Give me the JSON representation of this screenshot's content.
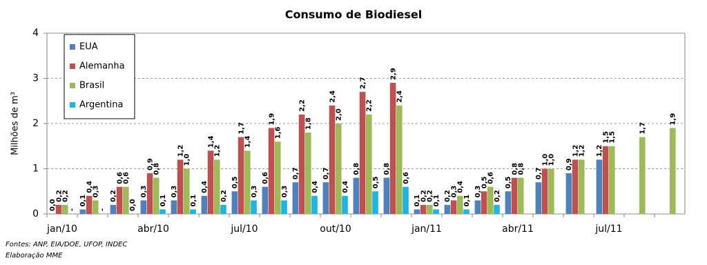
{
  "chart_data": {
    "type": "bar",
    "title": "Consumo de Biodiesel",
    "y_label": "Milhões de m³",
    "categories": [
      "jan/10",
      null,
      null,
      "abr/10",
      null,
      null,
      "jul/10",
      null,
      null,
      "out/10",
      null,
      null,
      "jan/11",
      null,
      null,
      "abr/11",
      null,
      null,
      "jul/11",
      null,
      null
    ],
    "series": [
      {
        "name": "EUA",
        "color": "#4f81bd",
        "values": [
          0.0,
          0.1,
          0.2,
          0.3,
          0.3,
          0.4,
          0.5,
          0.6,
          0.7,
          0.7,
          0.8,
          0.8,
          0.1,
          0.2,
          0.3,
          0.5,
          0.7,
          0.9,
          1.2,
          null,
          null
        ],
        "value_labels": [
          "0,0",
          "0,1",
          "0,2",
          "0,3",
          "0,3",
          "0,4",
          "0,5",
          "0,6",
          "0,7",
          "0,7",
          "0,8",
          "0,8",
          "0,1",
          "0,2",
          "0,3",
          "0,5",
          "0,7",
          "0,9",
          "1,2",
          null,
          null
        ]
      },
      {
        "name": "Alemanha",
        "color": "#c0504d",
        "values": [
          0.2,
          0.4,
          0.6,
          0.9,
          1.2,
          1.4,
          1.7,
          1.9,
          2.2,
          2.4,
          2.7,
          2.9,
          0.2,
          0.3,
          0.5,
          0.8,
          1.0,
          1.2,
          1.5,
          null,
          null
        ],
        "value_labels": [
          "0,2",
          "0,4",
          "0,6",
          "0,9",
          "1,2",
          "1,4",
          "1,7",
          "1,9",
          "2,2",
          "2,4",
          "2,7",
          "2,9",
          "0,2",
          "0,3",
          "0,5",
          "0,8",
          "1,0",
          "1,2",
          "1,5",
          null,
          null
        ]
      },
      {
        "name": "Brasil",
        "color": "#9bbb59",
        "values": [
          0.2,
          0.3,
          0.6,
          0.8,
          1.0,
          1.2,
          1.4,
          1.6,
          1.8,
          2.0,
          2.2,
          2.4,
          0.2,
          0.4,
          0.6,
          0.8,
          1.0,
          1.2,
          1.5,
          1.7,
          1.9
        ],
        "value_labels": [
          "0,2",
          "0,3",
          "0,6",
          "0,8",
          "1,0",
          "1,2",
          "1,4",
          "1,6",
          "1,8",
          "2,0",
          "2,2",
          "2,4",
          "0,2",
          "0,4",
          "0,6",
          "0,8",
          "1,0",
          "1,2",
          "1,5",
          "1,7",
          "1,9"
        ]
      },
      {
        "name": "Argentina",
        "color": "#1fb4e6",
        "values": [
          null,
          null,
          0.0,
          0.1,
          0.1,
          0.2,
          0.3,
          0.3,
          0.4,
          0.4,
          0.5,
          0.6,
          0.1,
          0.1,
          0.2,
          null,
          null,
          null,
          null,
          null,
          null
        ],
        "value_labels": [
          "-",
          "-",
          "0,0",
          "0,1",
          "0,1",
          "0,2",
          "0,3",
          "0,3",
          "0,4",
          "0,4",
          "0,5",
          "0,6",
          "0,1",
          "0,1",
          "0,2",
          null,
          null,
          null,
          null,
          null,
          null
        ]
      }
    ],
    "ylim": [
      0,
      4
    ],
    "yticks": [
      0,
      1,
      2,
      3,
      4
    ],
    "grid": true,
    "legend": "upper left",
    "notes": [
      "Fontes: ANP, EIA/DOE, UFOP, INDEC",
      "Elaboração MME"
    ]
  }
}
